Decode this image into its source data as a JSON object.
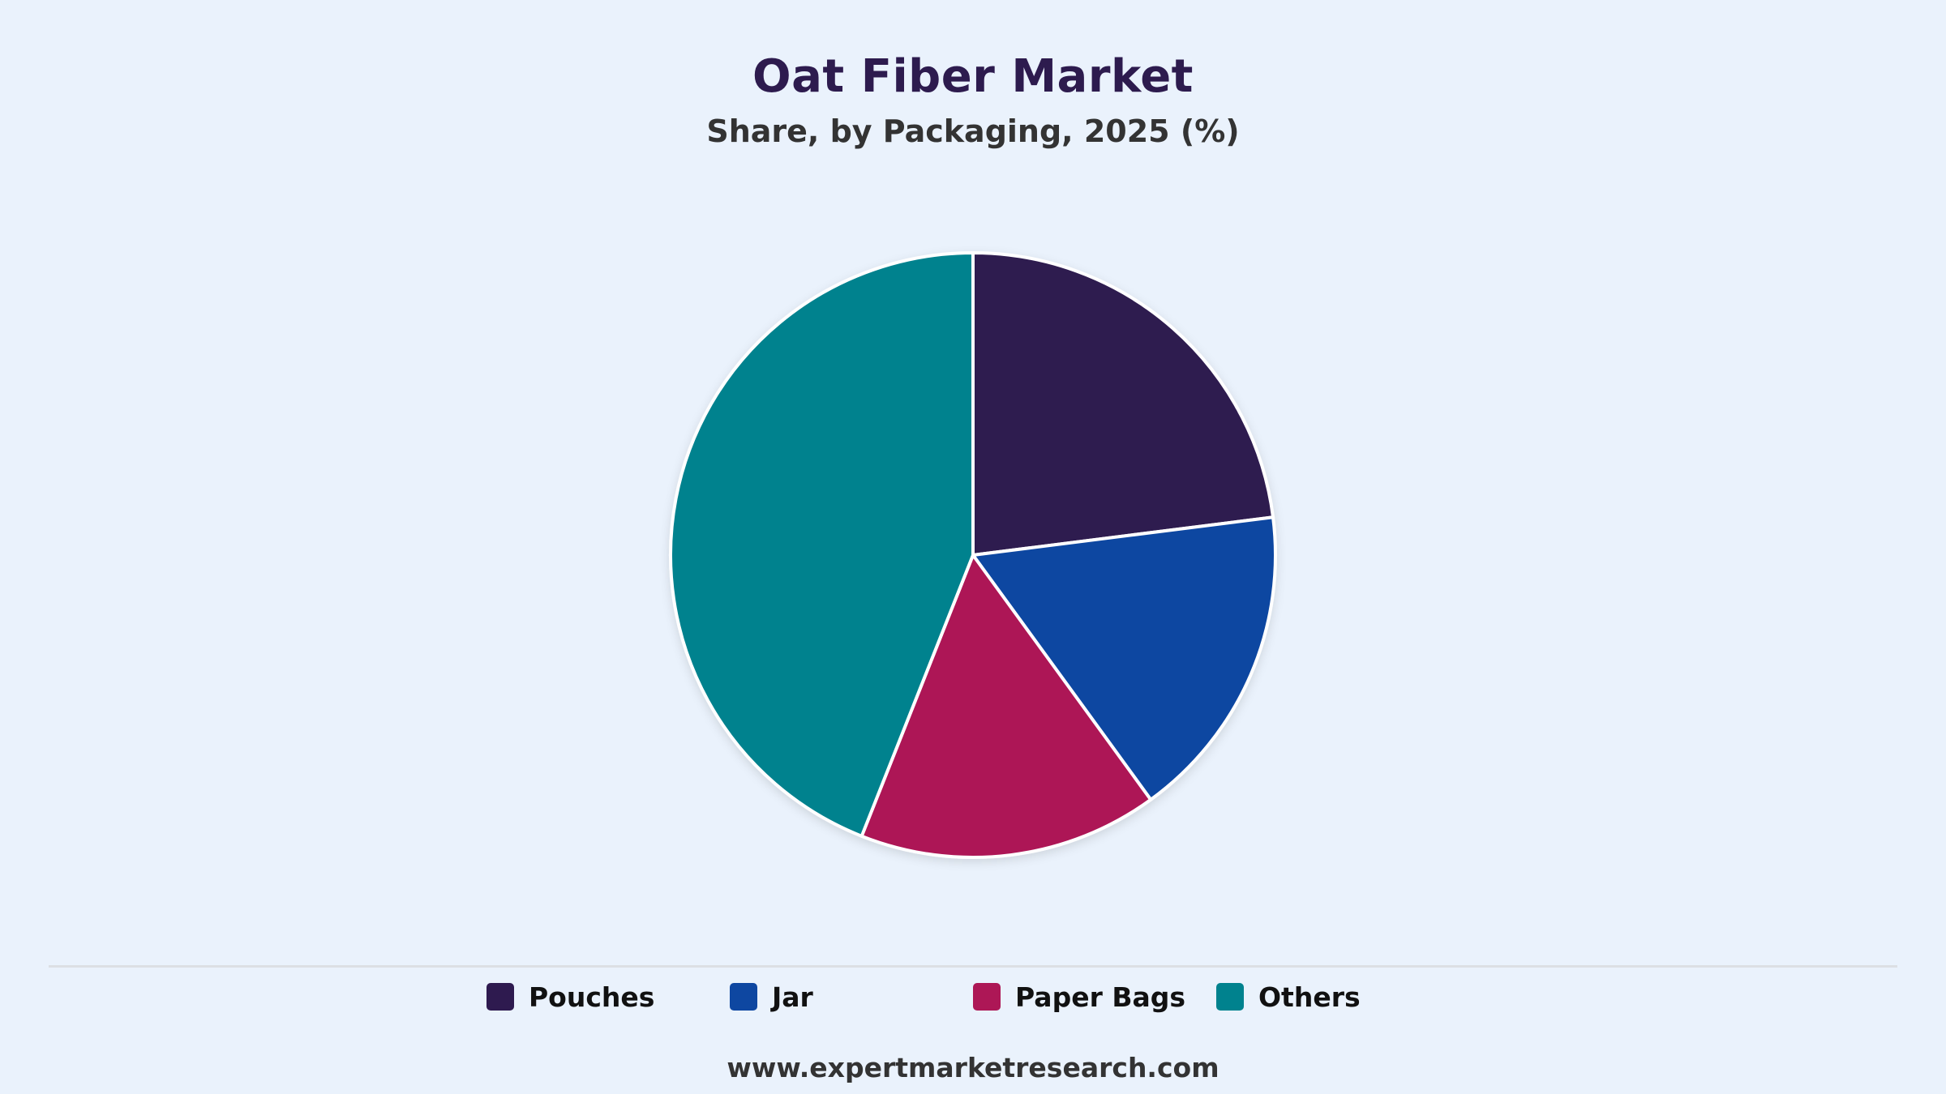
{
  "chart_data": {
    "type": "pie",
    "title": "Oat Fiber Market",
    "subtitle": "Share, by Packaging, 2025 (%)",
    "categories": [
      "Pouches",
      "Jar",
      "Paper Bags",
      "Others"
    ],
    "values": [
      23,
      17,
      16,
      44
    ],
    "colors": [
      "#2e1a4f",
      "#0e47a1",
      "#ad1756",
      "#00828e"
    ],
    "legend_position": "bottom"
  },
  "footer": {
    "source": "www.expertmarketresearch.com"
  }
}
